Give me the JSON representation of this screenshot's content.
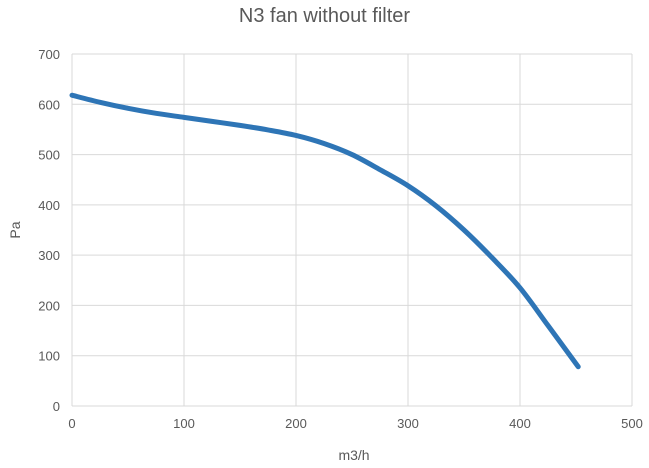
{
  "chart_data": {
    "type": "line",
    "title": "N3 fan without filter",
    "xlabel": "m3/h",
    "ylabel": "Pa",
    "xlim": [
      0,
      500
    ],
    "ylim": [
      0,
      700
    ],
    "xticks": [
      "0",
      "100",
      "200",
      "300",
      "400",
      "500"
    ],
    "yticks": [
      "0",
      "100",
      "200",
      "300",
      "400",
      "500",
      "600",
      "700"
    ],
    "grid": true,
    "legend": "none",
    "series_color": "#2E75B6",
    "grid_color": "#D9D9D9",
    "series": [
      {
        "x": [
          0,
          25,
          50,
          75,
          100,
          125,
          150,
          175,
          200,
          225,
          250,
          275,
          300,
          325,
          350,
          375,
          400,
          425,
          452
        ],
        "y": [
          618,
          604,
          592,
          582,
          574,
          566,
          558,
          549,
          538,
          522,
          500,
          470,
          438,
          398,
          350,
          295,
          235,
          160,
          78
        ]
      }
    ]
  }
}
